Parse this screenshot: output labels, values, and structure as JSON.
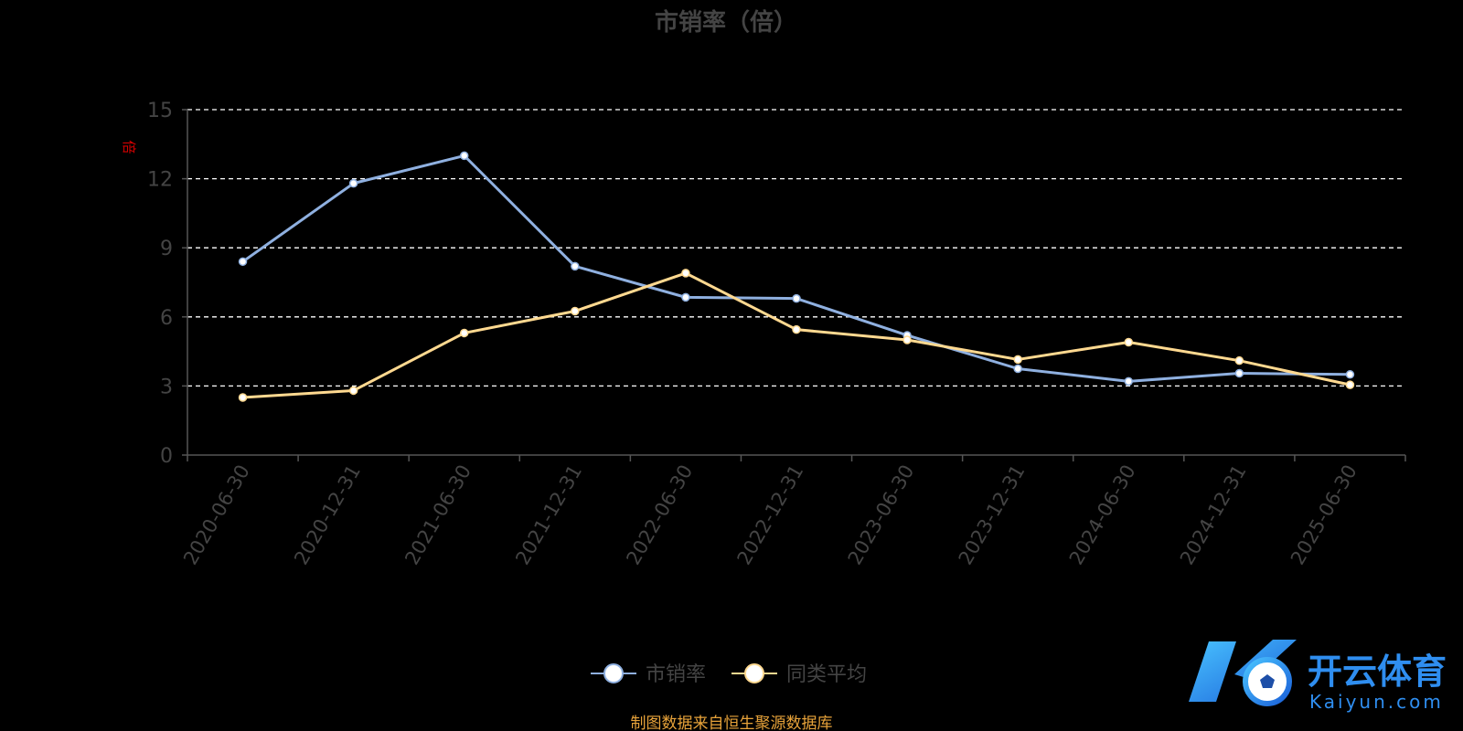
{
  "chart_data": {
    "type": "line",
    "title": "市销率（倍）",
    "y_unit": "倍",
    "categories": [
      "2020-06-30",
      "2020-12-31",
      "2021-06-30",
      "2021-12-31",
      "2022-06-30",
      "2022-12-31",
      "2023-06-30",
      "2023-12-31",
      "2024-06-30",
      "2024-12-31",
      "2025-06-30"
    ],
    "y_ticks": [
      "0",
      "3",
      "6",
      "9",
      "12",
      "15"
    ],
    "ylim": [
      0,
      15
    ],
    "grid": true,
    "legend_position": "bottom-center",
    "series": [
      {
        "name": "市销率",
        "color": "#8fb0e0",
        "values": [
          8.4,
          11.8,
          13.0,
          8.2,
          6.85,
          6.8,
          5.2,
          3.75,
          3.2,
          3.55,
          3.5
        ]
      },
      {
        "name": "同类平均",
        "color": "#ffd990",
        "values": [
          2.5,
          2.8,
          5.3,
          6.25,
          7.9,
          5.45,
          5.0,
          4.15,
          4.9,
          4.1,
          3.05
        ]
      }
    ]
  },
  "source_note": "制图数据来自恒生聚源数据库",
  "watermark": {
    "brand_cn": "开云体育",
    "brand_en": "Kaiyun.com"
  }
}
